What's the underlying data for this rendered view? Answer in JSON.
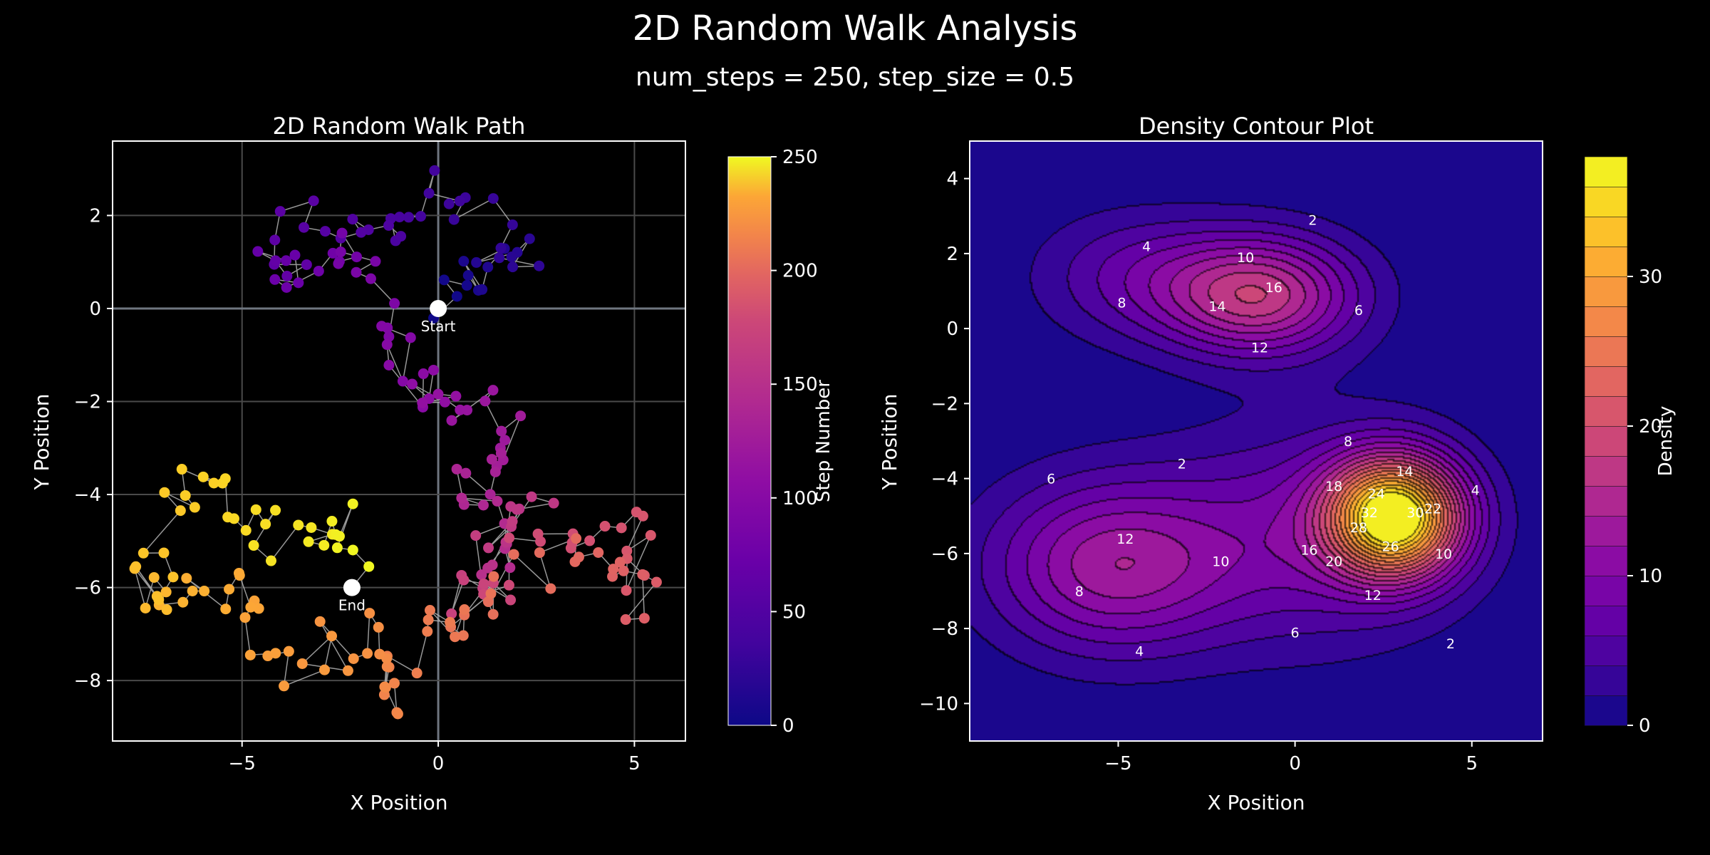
{
  "title": "2D Random Walk Analysis",
  "subtitle": "num_steps = 250, step_size = 0.5",
  "colors": {
    "background": "#000000",
    "grid": "#5a5a5a",
    "frame": "#ffffff"
  },
  "chart_data": [
    {
      "type": "scatter",
      "title": "2D Random Walk Path",
      "xlabel": "X Position",
      "ylabel": "Y Position",
      "xlim": [
        -8.3,
        6.3
      ],
      "ylim": [
        -9.3,
        3.6
      ],
      "xticks": [
        -5,
        0,
        5
      ],
      "yticks": [
        2,
        0,
        -2,
        -4,
        -6,
        -8
      ],
      "grid": true,
      "colormap": "plasma",
      "colorbar": {
        "label": "Step Number",
        "ticks": [
          0,
          50,
          100,
          150,
          200,
          250
        ],
        "range": [
          0,
          250
        ]
      },
      "start": {
        "label": "Start",
        "x": 0,
        "y": 0
      },
      "end": {
        "label": "End",
        "x": -2.2,
        "y": -6.0
      },
      "path_waypoints": [
        {
          "step": 0,
          "x": 0.0,
          "y": 0.0
        },
        {
          "step": 8,
          "x": 0.9,
          "y": 0.9
        },
        {
          "step": 16,
          "x": 2.2,
          "y": 1.1
        },
        {
          "step": 24,
          "x": 0.1,
          "y": 2.8
        },
        {
          "step": 32,
          "x": -1.4,
          "y": 1.6
        },
        {
          "step": 40,
          "x": -3.5,
          "y": 1.9
        },
        {
          "step": 48,
          "x": -4.3,
          "y": 0.6
        },
        {
          "step": 56,
          "x": -2.5,
          "y": 1.4
        },
        {
          "step": 64,
          "x": -1.0,
          "y": -0.3
        },
        {
          "step": 72,
          "x": -0.8,
          "y": -1.8
        },
        {
          "step": 80,
          "x": 0.3,
          "y": -2.0
        },
        {
          "step": 88,
          "x": 1.8,
          "y": -2.8
        },
        {
          "step": 96,
          "x": 0.8,
          "y": -3.7
        },
        {
          "step": 104,
          "x": 1.5,
          "y": -5.5
        },
        {
          "step": 112,
          "x": 2.4,
          "y": -4.1
        },
        {
          "step": 120,
          "x": 0.7,
          "y": -6.1
        },
        {
          "step": 128,
          "x": 2.3,
          "y": -5.3
        },
        {
          "step": 136,
          "x": 4.8,
          "y": -4.8
        },
        {
          "step": 144,
          "x": 5.1,
          "y": -6.4
        },
        {
          "step": 152,
          "x": 3.7,
          "y": -5.0
        },
        {
          "step": 160,
          "x": 1.2,
          "y": -6.2
        },
        {
          "step": 168,
          "x": -0.2,
          "y": -6.8
        },
        {
          "step": 176,
          "x": -1.4,
          "y": -8.4
        },
        {
          "step": 184,
          "x": -2.0,
          "y": -7.0
        },
        {
          "step": 192,
          "x": -3.6,
          "y": -7.6
        },
        {
          "step": 200,
          "x": -5.0,
          "y": -6.3
        },
        {
          "step": 208,
          "x": -6.5,
          "y": -5.9
        },
        {
          "step": 216,
          "x": -7.6,
          "y": -6.0
        },
        {
          "step": 224,
          "x": -6.4,
          "y": -3.8
        },
        {
          "step": 232,
          "x": -5.3,
          "y": -4.4
        },
        {
          "step": 240,
          "x": -3.1,
          "y": -5.2
        },
        {
          "step": 246,
          "x": -2.4,
          "y": -4.5
        },
        {
          "step": 250,
          "x": -2.2,
          "y": -6.0
        }
      ]
    },
    {
      "type": "contour",
      "title": "Density Contour Plot",
      "xlabel": "X Position",
      "ylabel": "Y Position",
      "xlim": [
        -9.2,
        7.0
      ],
      "ylim": [
        -11.0,
        5.0
      ],
      "xticks": [
        -5,
        0,
        5
      ],
      "yticks": [
        4,
        2,
        0,
        -2,
        -4,
        -6,
        -8,
        -10
      ],
      "colormap": "plasma",
      "colorbar": {
        "label": "Density",
        "ticks": [
          0,
          10,
          20,
          30
        ],
        "range": [
          0,
          38
        ]
      },
      "peaks": [
        {
          "x": 2.8,
          "y": -5.0,
          "value": 37,
          "sx": 1.3,
          "sy": 1.1
        },
        {
          "x": -5.2,
          "y": -6.3,
          "value": 13,
          "sx": 2.4,
          "sy": 1.6
        },
        {
          "x": -1.0,
          "y": 0.9,
          "value": 17,
          "sx": 1.9,
          "sy": 1.1
        },
        {
          "x": -4.5,
          "y": 1.4,
          "value": 6,
          "sx": 2.0,
          "sy": 1.2
        },
        {
          "x": 0.5,
          "y": -5.5,
          "value": 8,
          "sx": 2.8,
          "sy": 2.0
        }
      ],
      "contour_labels": [
        {
          "text": "2",
          "x": 0.5,
          "y": 2.9
        },
        {
          "text": "4",
          "x": -4.2,
          "y": 2.2
        },
        {
          "text": "10",
          "x": -1.4,
          "y": 1.9
        },
        {
          "text": "16",
          "x": -0.6,
          "y": 1.1
        },
        {
          "text": "8",
          "x": -4.9,
          "y": 0.7
        },
        {
          "text": "14",
          "x": -2.2,
          "y": 0.6
        },
        {
          "text": "6",
          "x": 1.8,
          "y": 0.5
        },
        {
          "text": "12",
          "x": -1.0,
          "y": -0.5
        },
        {
          "text": "2",
          "x": -3.2,
          "y": -3.6
        },
        {
          "text": "8",
          "x": 1.5,
          "y": -3.0
        },
        {
          "text": "6",
          "x": -6.9,
          "y": -4.0
        },
        {
          "text": "14",
          "x": 3.1,
          "y": -3.8
        },
        {
          "text": "4",
          "x": 5.1,
          "y": -4.3
        },
        {
          "text": "18",
          "x": 1.1,
          "y": -4.2
        },
        {
          "text": "24",
          "x": 2.3,
          "y": -4.4
        },
        {
          "text": "32",
          "x": 2.1,
          "y": -4.9
        },
        {
          "text": "30",
          "x": 3.4,
          "y": -4.9
        },
        {
          "text": "22",
          "x": 3.9,
          "y": -4.8
        },
        {
          "text": "28",
          "x": 1.8,
          "y": -5.3
        },
        {
          "text": "26",
          "x": 2.7,
          "y": -5.8
        },
        {
          "text": "12",
          "x": -4.8,
          "y": -5.6
        },
        {
          "text": "16",
          "x": 0.4,
          "y": -5.9
        },
        {
          "text": "10",
          "x": -2.1,
          "y": -6.2
        },
        {
          "text": "20",
          "x": 1.1,
          "y": -6.2
        },
        {
          "text": "10",
          "x": 4.2,
          "y": -6.0
        },
        {
          "text": "8",
          "x": -6.1,
          "y": -7.0
        },
        {
          "text": "12",
          "x": 2.2,
          "y": -7.1
        },
        {
          "text": "6",
          "x": 0.0,
          "y": -8.1
        },
        {
          "text": "4",
          "x": -4.4,
          "y": -8.6
        },
        {
          "text": "2",
          "x": 4.4,
          "y": -8.4
        }
      ]
    }
  ]
}
